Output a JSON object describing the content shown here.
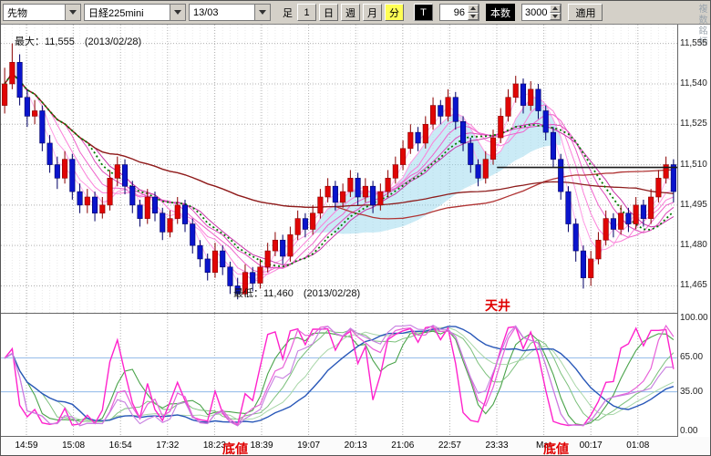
{
  "toolbar": {
    "instrument": "先物",
    "symbol": "日経225mini",
    "contract_month": "13/03",
    "timeframe_label": "足",
    "period_1": "1",
    "period_day": "日",
    "period_week": "週",
    "period_month": "月",
    "period_minute": "分",
    "tick": "T",
    "interval_value": "96",
    "bars_label": "本数",
    "bars_value": "3000",
    "apply": "適用"
  },
  "side_note": "複数銘柄",
  "annotations": {
    "max_label": "最大：11,555　(2013/02/28)",
    "min_label": "最低：11,460　(2013/02/28)",
    "ceiling": "天井",
    "bottom_left": "底値",
    "bottom_right": "底値"
  },
  "axes": {
    "price_labels": [
      "11,555",
      "11,540",
      "11,525",
      "11,510",
      "11,495",
      "11,480",
      "11,465"
    ],
    "price_values": [
      11555,
      11540,
      11525,
      11510,
      11495,
      11480,
      11465
    ],
    "osc_labels": [
      "100.00",
      "65.00",
      "35.00",
      "0.00"
    ],
    "osc_values": [
      100,
      65,
      35,
      0
    ],
    "time_labels": [
      "14:59",
      "15:08",
      "16:54",
      "17:32",
      "18:23",
      "18:39",
      "19:07",
      "20:13",
      "21:06",
      "22:57",
      "23:33",
      "Mar",
      "00:17",
      "01:08"
    ]
  },
  "chart_data": {
    "type": "candlestick",
    "symbol": "日経225mini 13/03",
    "price_range": [
      11455,
      11562
    ],
    "max_price": 11555,
    "min_price": 11460,
    "candles": [
      [
        11532,
        11546,
        11529,
        11540
      ],
      [
        11540,
        11555,
        11538,
        11548
      ],
      [
        11548,
        11551,
        11532,
        11535
      ],
      [
        11535,
        11538,
        11524,
        11528
      ],
      [
        11528,
        11534,
        11525,
        11530
      ],
      [
        11530,
        11532,
        11515,
        11518
      ],
      [
        11518,
        11521,
        11507,
        11510
      ],
      [
        11510,
        11513,
        11501,
        11505
      ],
      [
        11505,
        11515,
        11503,
        11512
      ],
      [
        11512,
        11514,
        11497,
        11500
      ],
      [
        11500,
        11503,
        11492,
        11495
      ],
      [
        11495,
        11501,
        11492,
        11498
      ],
      [
        11498,
        11500,
        11489,
        11492
      ],
      [
        11492,
        11498,
        11490,
        11495
      ],
      [
        11495,
        11508,
        11493,
        11505
      ],
      [
        11505,
        11513,
        11502,
        11510
      ],
      [
        11510,
        11512,
        11499,
        11502
      ],
      [
        11502,
        11504,
        11492,
        11495
      ],
      [
        11495,
        11497,
        11487,
        11490
      ],
      [
        11490,
        11501,
        11488,
        11498
      ],
      [
        11498,
        11500,
        11489,
        11492
      ],
      [
        11492,
        11494,
        11482,
        11485
      ],
      [
        11485,
        11493,
        11483,
        11490
      ],
      [
        11490,
        11498,
        11488,
        11495
      ],
      [
        11495,
        11497,
        11485,
        11488
      ],
      [
        11488,
        11490,
        11477,
        11480
      ],
      [
        11480,
        11482,
        11472,
        11475
      ],
      [
        11475,
        11477,
        11467,
        11470
      ],
      [
        11470,
        11481,
        11468,
        11478
      ],
      [
        11478,
        11480,
        11469,
        11472
      ],
      [
        11472,
        11474,
        11462,
        11465
      ],
      [
        11465,
        11468,
        11460,
        11462
      ],
      [
        11462,
        11473,
        11461,
        11470
      ],
      [
        11470,
        11472,
        11463,
        11466
      ],
      [
        11466,
        11475,
        11464,
        11472
      ],
      [
        11472,
        11481,
        11470,
        11478
      ],
      [
        11478,
        11485,
        11476,
        11482
      ],
      [
        11482,
        11484,
        11473,
        11476
      ],
      [
        11476,
        11487,
        11474,
        11484
      ],
      [
        11484,
        11493,
        11482,
        11490
      ],
      [
        11490,
        11492,
        11483,
        11486
      ],
      [
        11486,
        11495,
        11484,
        11492
      ],
      [
        11492,
        11501,
        11490,
        11498
      ],
      [
        11498,
        11505,
        11496,
        11502
      ],
      [
        11502,
        11504,
        11493,
        11496
      ],
      [
        11496,
        11503,
        11494,
        11500
      ],
      [
        11500,
        11508,
        11498,
        11505
      ],
      [
        11505,
        11507,
        11495,
        11498
      ],
      [
        11498,
        11505,
        11496,
        11502
      ],
      [
        11502,
        11504,
        11492,
        11495
      ],
      [
        11495,
        11503,
        11493,
        11500
      ],
      [
        11500,
        11508,
        11498,
        11505
      ],
      [
        11505,
        11513,
        11503,
        11510
      ],
      [
        11510,
        11519,
        11508,
        11516
      ],
      [
        11516,
        11525,
        11514,
        11522
      ],
      [
        11522,
        11524,
        11515,
        11518
      ],
      [
        11518,
        11528,
        11516,
        11525
      ],
      [
        11525,
        11535,
        11523,
        11532
      ],
      [
        11532,
        11534,
        11525,
        11528
      ],
      [
        11528,
        11538,
        11526,
        11535
      ],
      [
        11535,
        11537,
        11523,
        11526
      ],
      [
        11526,
        11528,
        11515,
        11518
      ],
      [
        11518,
        11520,
        11507,
        11510
      ],
      [
        11510,
        11512,
        11502,
        11505
      ],
      [
        11505,
        11515,
        11503,
        11512
      ],
      [
        11512,
        11523,
        11510,
        11520
      ],
      [
        11520,
        11531,
        11518,
        11528
      ],
      [
        11528,
        11538,
        11526,
        11535
      ],
      [
        11535,
        11543,
        11533,
        11540
      ],
      [
        11540,
        11542,
        11529,
        11532
      ],
      [
        11532,
        11541,
        11530,
        11538
      ],
      [
        11538,
        11540,
        11527,
        11530
      ],
      [
        11530,
        11532,
        11519,
        11522
      ],
      [
        11522,
        11524,
        11509,
        11512
      ],
      [
        11512,
        11514,
        11497,
        11500
      ],
      [
        11500,
        11502,
        11485,
        11488
      ],
      [
        11488,
        11490,
        11474,
        11478
      ],
      [
        11478,
        11480,
        11464,
        11468
      ],
      [
        11468,
        11478,
        11465,
        11475
      ],
      [
        11475,
        11485,
        11473,
        11482
      ],
      [
        11482,
        11493,
        11480,
        11490
      ],
      [
        11490,
        11492,
        11483,
        11486
      ],
      [
        11486,
        11495,
        11484,
        11492
      ],
      [
        11492,
        11494,
        11485,
        11488
      ],
      [
        11488,
        11498,
        11486,
        11495
      ],
      [
        11495,
        11497,
        11487,
        11490
      ],
      [
        11490,
        11501,
        11488,
        11498
      ],
      [
        11498,
        11508,
        11496,
        11505
      ],
      [
        11505,
        11513,
        11503,
        11510
      ],
      [
        11510,
        11512,
        11496,
        11500
      ]
    ],
    "colors": {
      "up": "#e00505",
      "up_stroke": "#8a0000",
      "down": "#0a14cc",
      "down_stroke": "#000066",
      "grid": "#b0b0b0",
      "fine_grid": "#e9e9e9"
    },
    "overlays": {
      "fan_periods": [
        3,
        5,
        7,
        9,
        11,
        13
      ],
      "fan_colors": [
        "#ffb6ec",
        "#ff9ae4",
        "#fb7fd9",
        "#ef63cb",
        "#de4cbc",
        "#c935aa"
      ],
      "green_ma": {
        "period": 12,
        "color": "#007a00"
      },
      "red_mas": [
        {
          "period": 45,
          "color": "#b03434"
        },
        {
          "period": 85,
          "color": "#8e1d1d"
        }
      ],
      "cloud": {
        "fast": 5,
        "slow": 30,
        "color": "rgba(140,210,235,0.45)"
      },
      "hline": {
        "price": 11509,
        "from_index": 66,
        "color": "#1a1a1a"
      }
    },
    "oscillator": {
      "type": "stochastics",
      "range": [
        0,
        100
      ],
      "k_lines": [
        {
          "period": 8,
          "smooth": 1,
          "color": "#ff22cc",
          "w": 1.4
        },
        {
          "period": 13,
          "smooth": 2,
          "color": "#e860d8",
          "w": 1.2
        },
        {
          "period": 18,
          "smooth": 2,
          "color": "#c77fe0",
          "w": 1.1
        }
      ],
      "d_lines": [
        {
          "period": 8,
          "smooth": 4,
          "color": "#4aa34a",
          "w": 1.1
        },
        {
          "period": 13,
          "smooth": 6,
          "color": "#7cc07c",
          "w": 1.0
        },
        {
          "period": 18,
          "smooth": 8,
          "color": "#a8d6a8",
          "w": 1.0
        }
      ],
      "slow_line": {
        "period": 25,
        "smooth": 10,
        "color": "#2857b8",
        "w": 1.4
      },
      "ref_lines": [
        65,
        35
      ],
      "ref_color": "#8fb8e8"
    }
  }
}
